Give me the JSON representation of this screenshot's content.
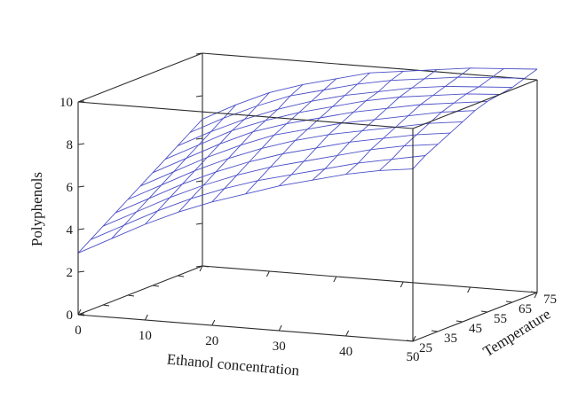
{
  "chart_data": {
    "type": "surface",
    "xlabel": "Ethanol concentration",
    "ylabel": "Temperature",
    "zlabel": "Polyphenols",
    "x_ticks": [
      "0",
      "10",
      "20",
      "30",
      "40",
      "50"
    ],
    "y_ticks": [
      "25",
      "35",
      "45",
      "55",
      "65",
      "75"
    ],
    "z_ticks": [
      "0",
      "2",
      "4",
      "6",
      "8",
      "10"
    ],
    "xlim": [
      0,
      50
    ],
    "ylim": [
      25,
      75
    ],
    "zlim": [
      0,
      10
    ],
    "grid": false,
    "mesh_color": "#4b4fc7",
    "x": [
      0,
      5,
      10,
      15,
      20,
      25,
      30,
      35,
      40,
      45,
      50
    ],
    "y": [
      25,
      30,
      35,
      40,
      45,
      50,
      55,
      60,
      65,
      70,
      75
    ],
    "z": [
      [
        2.9,
        3.7,
        4.5,
        5.2,
        5.8,
        6.3,
        6.8,
        7.2,
        7.6,
        7.9,
        8.1
      ],
      [
        3.3,
        4.1,
        4.9,
        5.6,
        6.2,
        6.7,
        7.1,
        7.5,
        7.9,
        8.2,
        8.5
      ],
      [
        3.7,
        4.5,
        5.3,
        6.0,
        6.6,
        7.1,
        7.5,
        7.9,
        8.3,
        8.6,
        8.8
      ],
      [
        4.1,
        4.9,
        5.7,
        6.4,
        7.0,
        7.5,
        7.9,
        8.3,
        8.6,
        8.9,
        9.1
      ],
      [
        4.5,
        5.3,
        6.1,
        6.8,
        7.4,
        7.9,
        8.3,
        8.6,
        8.9,
        9.2,
        9.4
      ],
      [
        4.9,
        5.7,
        6.5,
        7.2,
        7.8,
        8.2,
        8.6,
        8.9,
        9.2,
        9.5,
        9.7
      ],
      [
        5.3,
        6.1,
        6.9,
        7.6,
        8.1,
        8.5,
        8.9,
        9.2,
        9.5,
        9.7,
        9.9
      ],
      [
        5.7,
        6.5,
        7.3,
        7.9,
        8.4,
        8.8,
        9.2,
        9.5,
        9.7,
        9.9,
        10.0
      ],
      [
        6.1,
        6.9,
        7.6,
        8.2,
        8.7,
        9.1,
        9.4,
        9.7,
        9.9,
        10.0,
        10.1
      ],
      [
        6.5,
        7.3,
        8.0,
        8.6,
        9.0,
        9.4,
        9.7,
        9.9,
        10.1,
        10.2,
        10.3
      ],
      [
        6.9,
        7.7,
        8.4,
        8.9,
        9.3,
        9.7,
        9.9,
        10.1,
        10.3,
        10.4,
        10.5
      ]
    ]
  }
}
